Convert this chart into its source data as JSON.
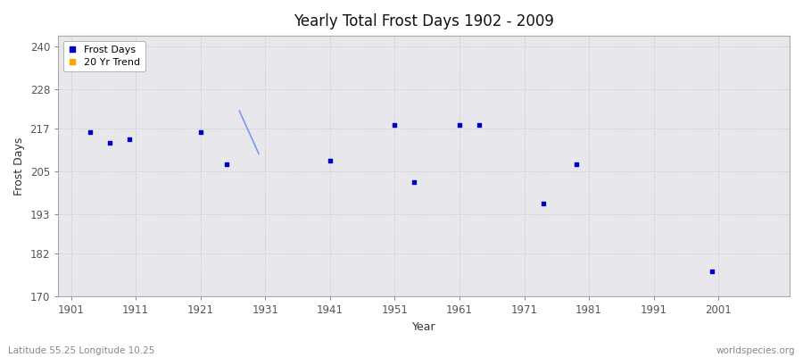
{
  "title": "Yearly Total Frost Days 1902 - 2009",
  "xlabel": "Year",
  "ylabel": "Frost Days",
  "footer_left": "Latitude 55.25 Longitude 10.25",
  "footer_right": "worldspecies.org",
  "xlim": [
    1899,
    2012
  ],
  "ylim": [
    170,
    243
  ],
  "yticks": [
    170,
    182,
    193,
    205,
    217,
    228,
    240
  ],
  "xticks": [
    1901,
    1911,
    1921,
    1931,
    1941,
    1951,
    1961,
    1971,
    1981,
    1991,
    2001
  ],
  "bg_color": "#ffffff",
  "plot_bg_color": "#e8e8ec",
  "frost_days_color": "#0000cc",
  "trend_line_color": "#7799ee",
  "trend_color": "#ffa500",
  "scatter_points": [
    [
      1904,
      216
    ],
    [
      1907,
      213
    ],
    [
      1910,
      214
    ],
    [
      1921,
      216
    ],
    [
      1925,
      207
    ],
    [
      1941,
      208
    ],
    [
      1951,
      218
    ],
    [
      1954,
      202
    ],
    [
      1961,
      218
    ],
    [
      1964,
      218
    ],
    [
      1974,
      196
    ],
    [
      1979,
      207
    ],
    [
      2000,
      177
    ]
  ],
  "trend_line": [
    [
      1927,
      222
    ],
    [
      1930,
      210
    ]
  ]
}
